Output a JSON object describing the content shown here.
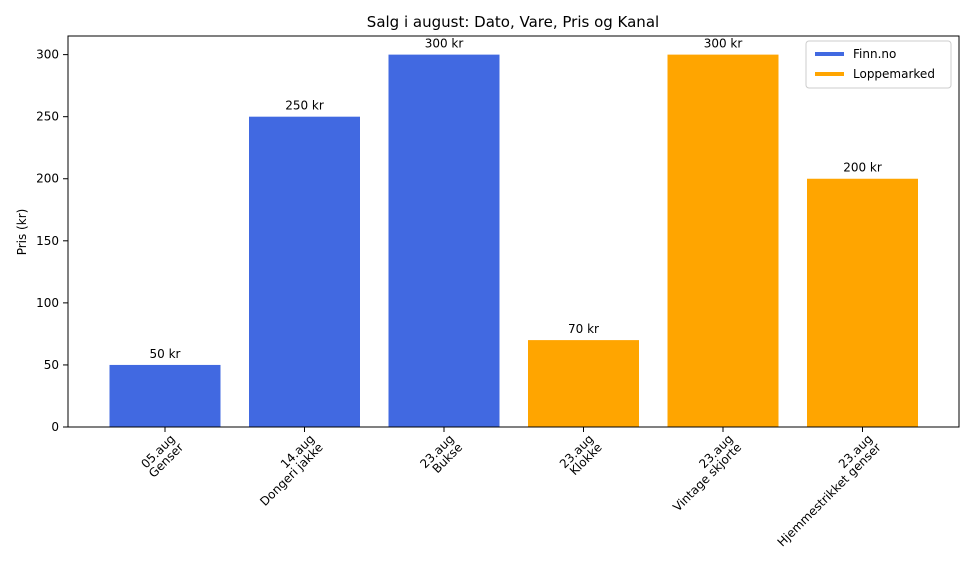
{
  "chart_data": {
    "type": "bar",
    "title": "Salg i august: Dato, Vare, Pris og Kanal",
    "xlabel": "",
    "ylabel": "Pris (kr)",
    "ylim": [
      0,
      315
    ],
    "yticks": [
      "0",
      "50",
      "100",
      "150",
      "200",
      "250",
      "300"
    ],
    "categories": [
      [
        "05.aug",
        "Genser"
      ],
      [
        "14.aug",
        "Dongeri jakke"
      ],
      [
        "23.aug",
        "Bukse"
      ],
      [
        "23.aug",
        "Klokke"
      ],
      [
        "23.aug",
        "Vintage skjorte"
      ],
      [
        "23.aug",
        "Hjemmestrikket genser"
      ]
    ],
    "values": [
      50,
      250,
      300,
      70,
      300,
      200
    ],
    "bar_labels": [
      "50 kr",
      "250 kr",
      "300 kr",
      "70 kr",
      "300 kr",
      "200 kr"
    ],
    "channels": [
      "Finn.no",
      "Finn.no",
      "Finn.no",
      "Loppemarked",
      "Loppemarked",
      "Loppemarked"
    ],
    "legend": [
      {
        "name": "Finn.no",
        "color": "#4169e1"
      },
      {
        "name": "Loppemarked",
        "color": "#ffa500"
      }
    ],
    "legend_position": "top-right",
    "grid": false
  }
}
